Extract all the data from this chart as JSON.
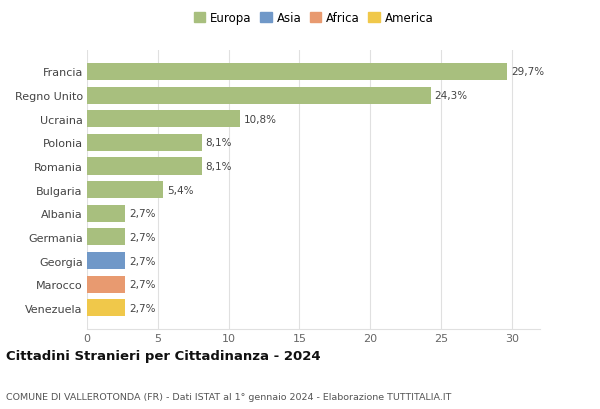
{
  "categories": [
    "Venezuela",
    "Marocco",
    "Georgia",
    "Germania",
    "Albania",
    "Bulgaria",
    "Romania",
    "Polonia",
    "Ucraina",
    "Regno Unito",
    "Francia"
  ],
  "values": [
    2.7,
    2.7,
    2.7,
    2.7,
    2.7,
    5.4,
    8.1,
    8.1,
    10.8,
    24.3,
    29.7
  ],
  "bar_colors": [
    "#f0c84a",
    "#e89a70",
    "#7098c8",
    "#a8bf7e",
    "#a8bf7e",
    "#a8bf7e",
    "#a8bf7e",
    "#a8bf7e",
    "#a8bf7e",
    "#a8bf7e",
    "#a8bf7e"
  ],
  "labels": [
    "2,7%",
    "2,7%",
    "2,7%",
    "2,7%",
    "2,7%",
    "5,4%",
    "8,1%",
    "8,1%",
    "10,8%",
    "24,3%",
    "29,7%"
  ],
  "legend_entries": [
    {
      "label": "Europa",
      "color": "#a8bf7e"
    },
    {
      "label": "Asia",
      "color": "#7098c8"
    },
    {
      "label": "Africa",
      "color": "#e89a70"
    },
    {
      "label": "America",
      "color": "#f0c84a"
    }
  ],
  "title": "Cittadini Stranieri per Cittadinanza - 2024",
  "subtitle": "COMUNE DI VALLEROTONDA (FR) - Dati ISTAT al 1° gennaio 2024 - Elaborazione TUTTITALIA.IT",
  "xlim": [
    0,
    32
  ],
  "xticks": [
    0,
    5,
    10,
    15,
    20,
    25,
    30
  ],
  "background_color": "#ffffff",
  "grid_color": "#e0e0e0",
  "bar_height": 0.72
}
